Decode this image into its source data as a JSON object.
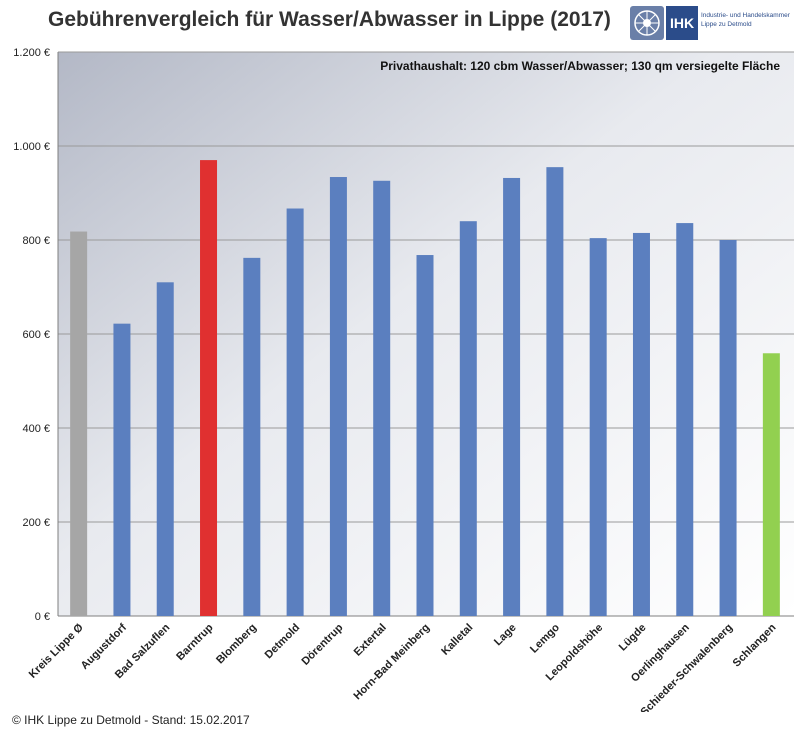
{
  "header": {
    "title": "Gebührenvergleich für Wasser/Abwasser in Lippe (2017)"
  },
  "logo": {
    "name": "IHK",
    "line1": "Industrie- und Handelskammer",
    "line2": "Lippe zu Detmold"
  },
  "footer": {
    "text": "© IHK Lippe zu Detmold - Stand: 15.02.2017"
  },
  "chart_data": {
    "type": "bar",
    "title": "Gebührenvergleich für Wasser/Abwasser in Lippe (2017)",
    "subtitle": "Privathaushalt: 120 cbm Wasser/Abwasser; 130 qm versiegelte Fläche",
    "xlabel": "",
    "ylabel": "",
    "ylim": [
      0,
      1200
    ],
    "yticks": [
      0,
      200,
      400,
      600,
      800,
      1000,
      1200
    ],
    "ytick_labels": [
      "0 €",
      "200 €",
      "400 €",
      "600 €",
      "800 €",
      "1.000 €",
      "1.200 €"
    ],
    "grid": true,
    "categories": [
      "Kreis Lippe Ø",
      "Augustdorf",
      "Bad Salzuflen",
      "Barntrup",
      "Blomberg",
      "Detmold",
      "Dörentrup",
      "Extertal",
      "Horn-Bad Meinberg",
      "Kalletal",
      "Lage",
      "Lemgo",
      "Leopoldshöhe",
      "Lügde",
      "Oerlinghausen",
      "Schieder-Schwalenberg",
      "Schlangen"
    ],
    "values": [
      818,
      622,
      710,
      970,
      762,
      867,
      934,
      926,
      768,
      840,
      932,
      955,
      804,
      815,
      836,
      800,
      559
    ],
    "colors": [
      "#a6a6a6",
      "#5b7fbf",
      "#5b7fbf",
      "#e03030",
      "#5b7fbf",
      "#5b7fbf",
      "#5b7fbf",
      "#5b7fbf",
      "#5b7fbf",
      "#5b7fbf",
      "#5b7fbf",
      "#5b7fbf",
      "#5b7fbf",
      "#5b7fbf",
      "#5b7fbf",
      "#5b7fbf",
      "#92d050"
    ]
  }
}
